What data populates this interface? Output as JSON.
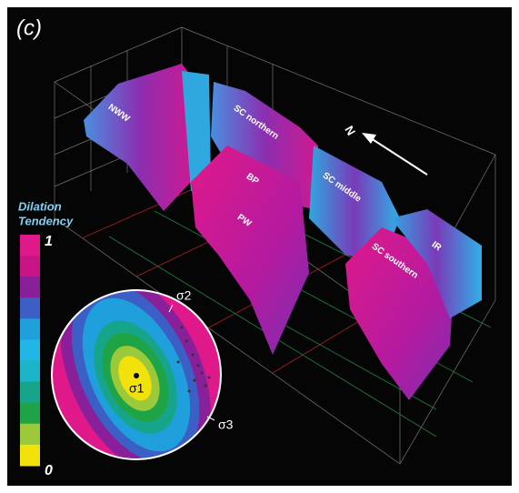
{
  "panel_label": "(c)",
  "fault_labels": [
    "NWW",
    "SC northern",
    "BP",
    "PW",
    "SC middle",
    "SC southern",
    "IR"
  ],
  "north_label": "N",
  "legend": {
    "title_lines": [
      "Dilation",
      "Tendency"
    ],
    "max_label": "1",
    "min_label": "0",
    "colors": [
      "#e0198a",
      "#c81487",
      "#8a1f9a",
      "#3b5fc4",
      "#1fa0dc",
      "#22b6e6",
      "#1cb4c8",
      "#16a58a",
      "#1fa347",
      "#9cc93a",
      "#f2e20c"
    ]
  },
  "stereonet": {
    "labels": [
      "σ1",
      "σ2",
      "σ3"
    ]
  }
}
